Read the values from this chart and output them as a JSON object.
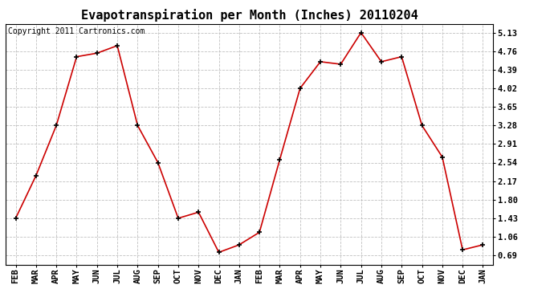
{
  "title": "Evapotranspiration per Month (Inches) 20110204",
  "copyright_text": "Copyright 2011 Cartronics.com",
  "months": [
    "FEB",
    "MAR",
    "APR",
    "MAY",
    "JUN",
    "JUL",
    "AUG",
    "SEP",
    "OCT",
    "NOV",
    "DEC",
    "JAN",
    "FEB",
    "MAR",
    "APR",
    "MAY",
    "JUN",
    "JUL",
    "AUG",
    "SEP",
    "OCT",
    "NOV",
    "DEC",
    "JAN"
  ],
  "values": [
    1.43,
    2.28,
    3.28,
    4.65,
    4.72,
    4.87,
    3.28,
    2.54,
    1.43,
    1.55,
    0.75,
    0.9,
    1.15,
    2.6,
    4.02,
    4.55,
    4.5,
    5.13,
    4.55,
    4.65,
    3.28,
    2.65,
    0.8,
    0.9
  ],
  "line_color": "#cc0000",
  "marker_color": "#000000",
  "background_color": "#ffffff",
  "plot_bg_color": "#ffffff",
  "grid_color": "#c0c0c0",
  "yticks": [
    0.69,
    1.06,
    1.43,
    1.8,
    2.17,
    2.54,
    2.91,
    3.28,
    3.65,
    4.02,
    4.39,
    4.76,
    5.13
  ],
  "ylim": [
    0.5,
    5.3
  ],
  "title_fontsize": 11,
  "tick_fontsize": 7.5,
  "copyright_fontsize": 7
}
